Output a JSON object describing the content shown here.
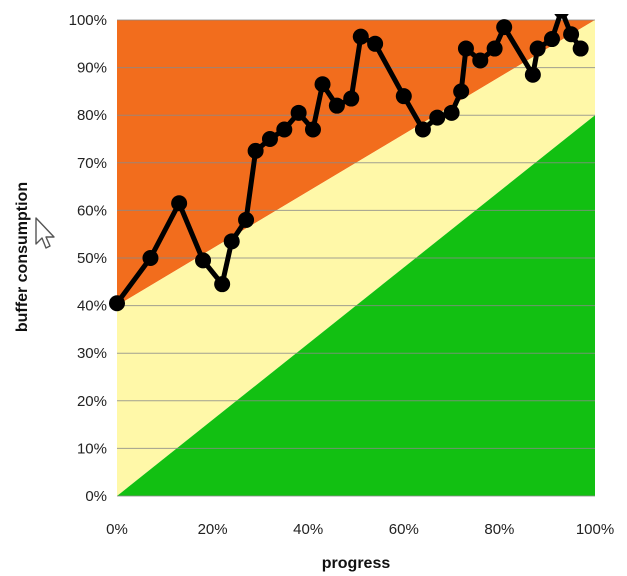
{
  "chart_data": {
    "type": "line",
    "title": "",
    "xlabel": "progress",
    "ylabel": "buffer consumption",
    "xlim": [
      0,
      100
    ],
    "ylim": [
      0,
      100
    ],
    "grid": "horizontal",
    "legend": "none",
    "x_tick_labels": [
      "0%",
      "20%",
      "40%",
      "60%",
      "80%",
      "100%"
    ],
    "x_ticks": [
      0,
      20,
      40,
      60,
      80,
      100
    ],
    "y_tick_labels": [
      "0%",
      "10%",
      "20%",
      "30%",
      "40%",
      "50%",
      "60%",
      "70%",
      "80%",
      "90%",
      "100%"
    ],
    "y_ticks": [
      0,
      10,
      20,
      30,
      40,
      50,
      60,
      70,
      80,
      90,
      100
    ],
    "zones": [
      {
        "name": "red",
        "color": "#F26D1D",
        "lower_boundary": [
          [
            0,
            40
          ],
          [
            100,
            100
          ]
        ],
        "upper_boundary": [
          [
            0,
            100
          ],
          [
            100,
            100
          ]
        ]
      },
      {
        "name": "yellow",
        "color": "#FFF8A8",
        "lower_boundary": [
          [
            0,
            0
          ],
          [
            100,
            80
          ]
        ],
        "upper_boundary": [
          [
            0,
            40
          ],
          [
            100,
            100
          ]
        ]
      },
      {
        "name": "green",
        "color": "#12C012",
        "lower_boundary": [
          [
            0,
            0
          ],
          [
            100,
            0
          ]
        ],
        "upper_boundary": [
          [
            0,
            0
          ],
          [
            100,
            80
          ]
        ]
      }
    ],
    "series": [
      {
        "color": "#000000",
        "x": [
          0,
          7,
          13,
          18,
          22,
          24,
          27,
          29,
          32,
          35,
          38,
          41,
          43,
          46,
          49,
          51,
          54,
          60,
          64,
          67,
          70,
          72,
          73,
          76,
          79,
          81,
          87,
          88,
          91,
          93,
          95,
          97
        ],
        "y": [
          40.5,
          50,
          61.5,
          49.5,
          44.5,
          53.5,
          58,
          72.5,
          75,
          77,
          80.5,
          77,
          86.5,
          82,
          83.5,
          96.5,
          95,
          84,
          77,
          79.5,
          80.5,
          85,
          94,
          91.5,
          94,
          98.5,
          88.5,
          94,
          96,
          102,
          97,
          94
        ]
      }
    ]
  }
}
